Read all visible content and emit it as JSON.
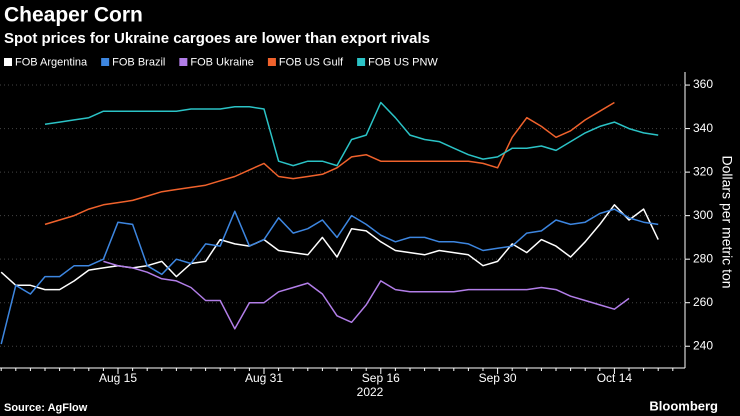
{
  "chart_data": {
    "type": "line",
    "title": "Cheaper Corn",
    "subtitle": "Spot prices for Ukraine cargoes are lower than export rivals",
    "x_label": "2022",
    "y_label": "Dollars per metric ton",
    "source": "Source: AgFlow",
    "brand": "Bloomberg",
    "categories": [
      null,
      null,
      null,
      null,
      null,
      null,
      null,
      null,
      "Aug 15",
      null,
      null,
      null,
      null,
      null,
      null,
      null,
      null,
      null,
      "Aug 31",
      null,
      null,
      null,
      null,
      null,
      null,
      null,
      "Sep 16",
      null,
      null,
      null,
      null,
      null,
      null,
      null,
      "Sep 30",
      null,
      null,
      null,
      null,
      null,
      null,
      null,
      "Oct 14",
      null,
      null,
      null,
      null
    ],
    "series": [
      {
        "name": "FOB Argentina",
        "color": "#ffffff",
        "values": [
          274,
          268,
          268,
          266,
          266,
          270,
          275,
          276,
          277,
          276,
          277,
          279,
          272,
          278,
          279,
          289,
          287,
          286,
          289,
          284,
          283,
          282,
          290,
          281,
          294,
          293,
          288,
          284,
          283,
          282,
          284,
          283,
          282,
          277,
          279,
          287,
          283,
          289,
          286,
          281,
          288,
          296,
          305,
          298,
          303,
          289,
          null
        ]
      },
      {
        "name": "FOB Brazil",
        "color": "#3d86e0",
        "values": [
          241,
          268,
          264,
          272,
          272,
          277,
          277,
          280,
          297,
          296,
          277,
          273,
          280,
          278,
          287,
          286,
          302,
          286,
          289,
          299,
          292,
          294,
          298,
          290,
          300,
          296,
          291,
          288,
          290,
          290,
          288,
          288,
          287,
          284,
          285,
          286,
          292,
          293,
          298,
          296,
          297,
          301,
          303,
          299,
          297,
          296,
          null
        ]
      },
      {
        "name": "FOB Ukraine",
        "color": "#b27ee8",
        "values": [
          null,
          null,
          null,
          null,
          null,
          null,
          null,
          279,
          277,
          276,
          274,
          271,
          270,
          267,
          261,
          261,
          248,
          260,
          260,
          265,
          267,
          269,
          264,
          254,
          251,
          259,
          270,
          266,
          265,
          265,
          265,
          265,
          266,
          266,
          266,
          266,
          266,
          267,
          266,
          263,
          261,
          259,
          257,
          262,
          null,
          null,
          null
        ]
      },
      {
        "name": "FOB US Gulf",
        "color": "#f0622c",
        "values": [
          null,
          null,
          null,
          296,
          298,
          300,
          303,
          305,
          306,
          307,
          309,
          311,
          312,
          313,
          314,
          316,
          318,
          321,
          324,
          318,
          317,
          318,
          319,
          322,
          327,
          328,
          325,
          325,
          325,
          325,
          325,
          325,
          325,
          324,
          322,
          336,
          345,
          341,
          336,
          339,
          344,
          348,
          352,
          null,
          null,
          null,
          null
        ]
      },
      {
        "name": "FOB US PNW",
        "color": "#2bc3c6",
        "values": [
          null,
          null,
          null,
          342,
          343,
          344,
          345,
          348,
          348,
          348,
          348,
          348,
          348,
          349,
          349,
          349,
          350,
          350,
          349,
          325,
          323,
          325,
          325,
          323,
          335,
          337,
          352,
          345,
          337,
          335,
          334,
          331,
          328,
          326,
          327,
          331,
          331,
          332,
          330,
          334,
          338,
          341,
          343,
          340,
          338,
          337,
          null
        ]
      }
    ],
    "ylim": [
      230,
      366
    ],
    "yticks": [
      240,
      260,
      280,
      300,
      320,
      340,
      360
    ],
    "grid": true
  }
}
